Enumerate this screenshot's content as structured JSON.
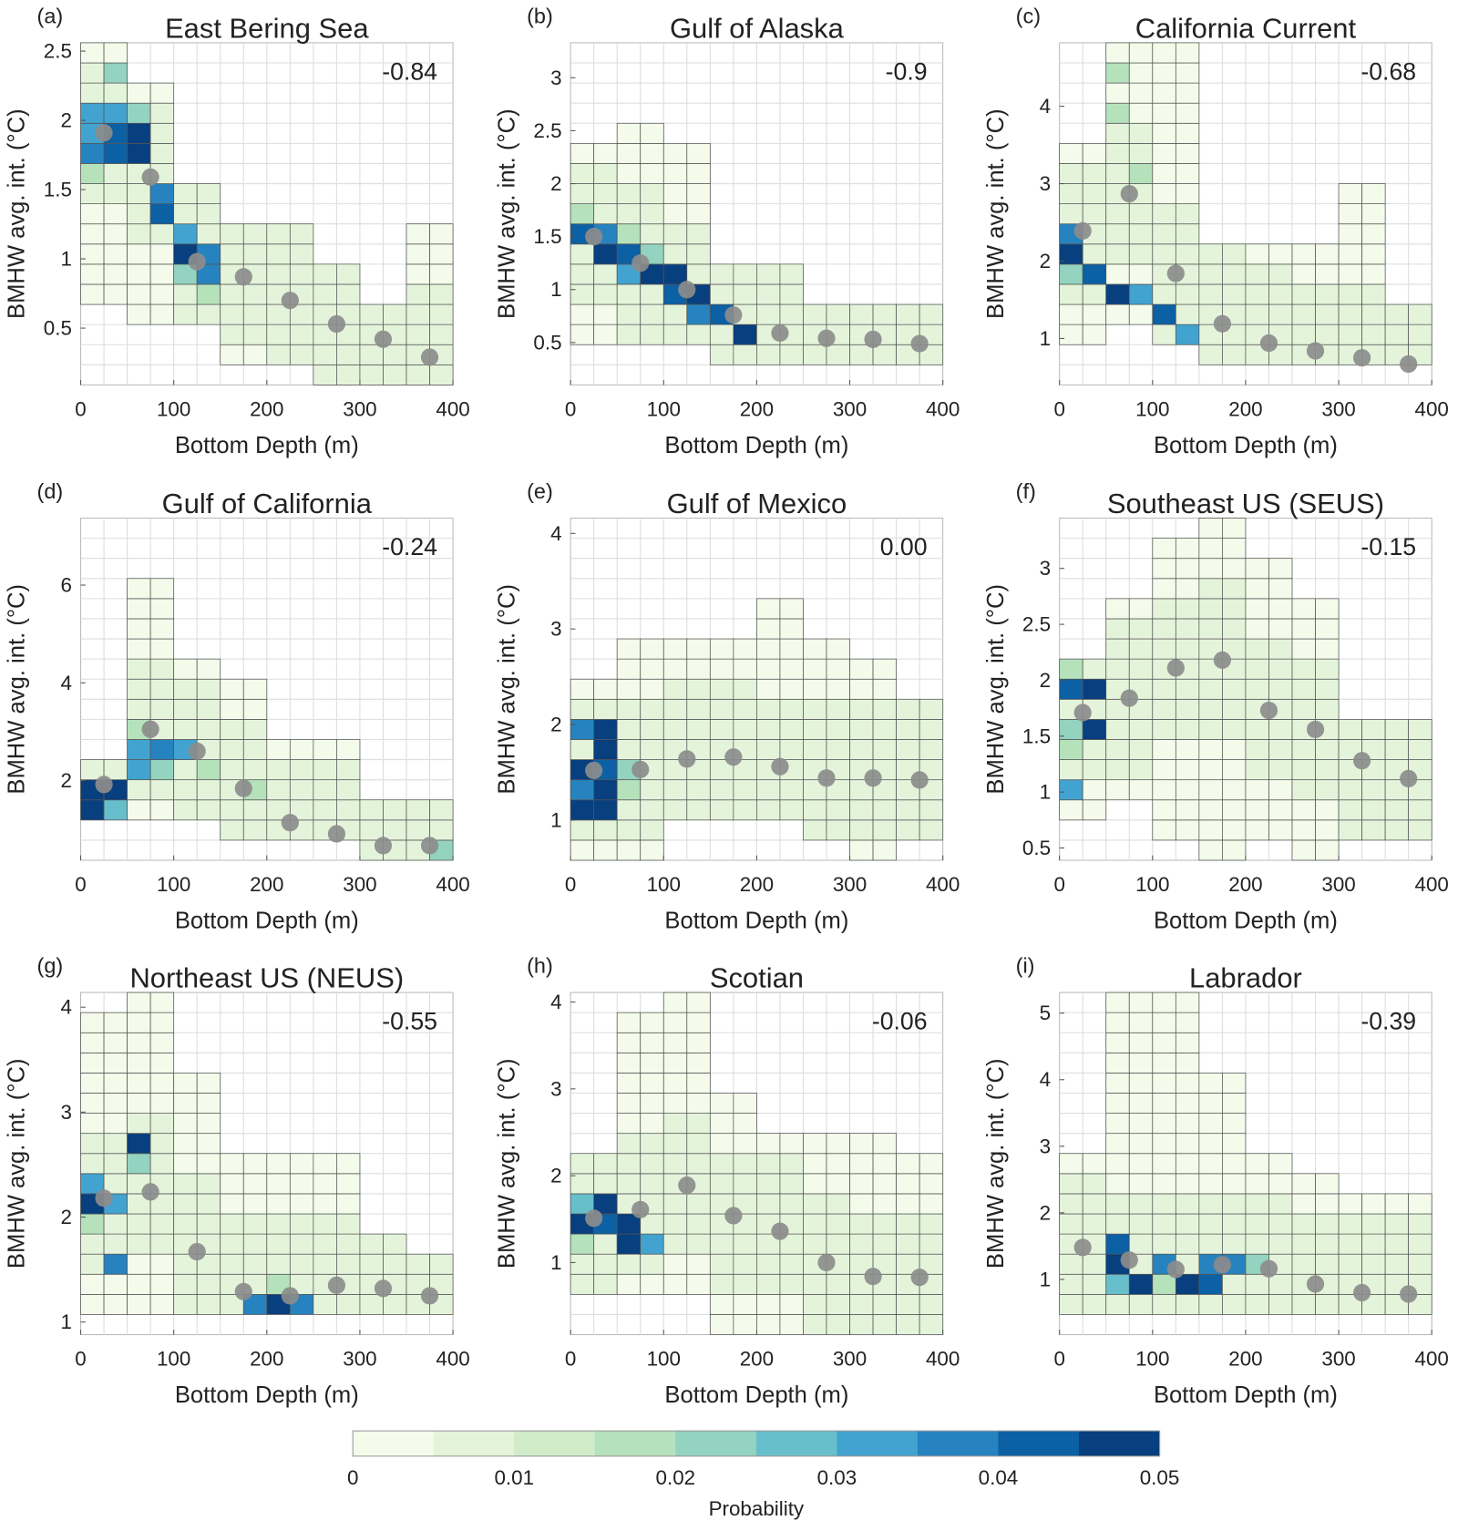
{
  "chart_data": {
    "type": "heatmap",
    "panel_count": 9,
    "xlabel": "Bottom Depth (m)",
    "ylabel": "BMHW avg. int. (°C)",
    "xlim": [
      0,
      400
    ],
    "x_ticks": [
      0,
      100,
      200,
      300,
      400
    ],
    "x_bin_width": 25,
    "mean_depths": [
      25,
      75,
      125,
      175,
      225,
      275,
      325,
      375
    ],
    "colorbar": {
      "label": "Probability",
      "range": [
        0,
        0.05
      ],
      "step": 0.005,
      "ticks": [
        "0",
        "0.01",
        "0.02",
        "0.03",
        "0.04",
        "0.05"
      ],
      "colors": [
        "#f4fbea",
        "#e4f4db",
        "#d0ecc9",
        "#b5e2bb",
        "#93d3bf",
        "#67bfcc",
        "#42a3d0",
        "#2683bf",
        "#0c60a4",
        "#083f7e"
      ]
    },
    "dot_color": "#8c8c8c",
    "panels": [
      {
        "letter": "(a)",
        "title": "East Bering Sea",
        "corr": "-0.84",
        "ylim": [
          0.09,
          2.56
        ],
        "yticks": [
          "0.5",
          "1",
          "1.5",
          "2",
          "2.5"
        ],
        "means": [
          1.91,
          1.59,
          0.98,
          0.87,
          0.7,
          0.53,
          0.42,
          0.29
        ],
        "extent": [
          [
            0.7,
            2.56
          ],
          [
            0.5,
            2.3
          ],
          [
            0.5,
            1.6
          ],
          [
            0.3,
            1.3
          ],
          [
            0.3,
            1.3
          ],
          [
            0.1,
            1.0
          ],
          [
            0.1,
            0.6
          ],
          [
            0.1,
            1.2
          ]
        ],
        "hot_cells": [
          [
            12.5,
            1.95,
            0.03
          ],
          [
            37.5,
            1.95,
            0.04
          ],
          [
            12.5,
            1.75,
            0.035
          ],
          [
            37.5,
            1.75,
            0.04
          ],
          [
            62.5,
            1.9,
            0.045
          ],
          [
            62.5,
            1.7,
            0.05
          ],
          [
            87.5,
            1.45,
            0.035
          ],
          [
            87.5,
            1.3,
            0.04
          ],
          [
            112.5,
            1.15,
            0.03
          ],
          [
            112.5,
            1.0,
            0.045
          ],
          [
            137.5,
            1.0,
            0.035
          ],
          [
            137.5,
            0.85,
            0.035
          ],
          [
            37.5,
            2.1,
            0.03
          ],
          [
            37.5,
            2.3,
            0.02
          ],
          [
            62.5,
            2.0,
            0.02
          ],
          [
            12.5,
            2.1,
            0.03
          ],
          [
            12.5,
            1.55,
            0.015
          ],
          [
            137.5,
            0.7,
            0.015
          ],
          [
            112.5,
            0.85,
            0.02
          ]
        ]
      },
      {
        "letter": "(b)",
        "title": "Gulf of Alaska",
        "corr": "-0.9",
        "ylim": [
          0.1,
          3.33
        ],
        "yticks": [
          "0.5",
          "1",
          "1.5",
          "2",
          "2.5",
          "3"
        ],
        "means": [
          1.5,
          1.25,
          1.0,
          0.76,
          0.59,
          0.54,
          0.53,
          0.49
        ],
        "extent": [
          [
            0.5,
            2.4
          ],
          [
            0.5,
            2.5
          ],
          [
            0.4,
            2.3
          ],
          [
            0.3,
            1.3
          ],
          [
            0.3,
            1.2
          ],
          [
            0.3,
            0.85
          ],
          [
            0.3,
            0.85
          ],
          [
            0.3,
            0.85
          ]
        ],
        "hot_cells": [
          [
            12.5,
            1.5,
            0.04
          ],
          [
            37.5,
            1.5,
            0.035
          ],
          [
            37.5,
            1.3,
            0.045
          ],
          [
            62.5,
            1.3,
            0.04
          ],
          [
            62.5,
            1.5,
            0.015
          ],
          [
            62.5,
            1.15,
            0.03
          ],
          [
            87.5,
            1.15,
            0.045
          ],
          [
            112.5,
            1.15,
            0.05
          ],
          [
            112.5,
            1.0,
            0.04
          ],
          [
            137.5,
            0.95,
            0.045
          ],
          [
            137.5,
            0.75,
            0.035
          ],
          [
            162.5,
            0.75,
            0.04
          ],
          [
            162.5,
            0.85,
            0.03
          ],
          [
            187.5,
            0.55,
            0.045
          ],
          [
            12.5,
            1.7,
            0.015
          ],
          [
            87.5,
            1.3,
            0.02
          ]
        ]
      },
      {
        "letter": "(c)",
        "title": "California Current",
        "corr": "-0.68",
        "ylim": [
          0.4,
          4.82
        ],
        "yticks": [
          "1",
          "2",
          "3",
          "4"
        ],
        "means": [
          2.39,
          2.87,
          1.84,
          1.19,
          0.94,
          0.84,
          0.75,
          0.67
        ],
        "extent": [
          [
            1.0,
            3.5
          ],
          [
            1.2,
            4.8
          ],
          [
            0.8,
            4.8
          ],
          [
            0.6,
            2.3
          ],
          [
            0.6,
            2.3
          ],
          [
            0.6,
            2.3
          ],
          [
            0.6,
            3.0
          ],
          [
            0.6,
            1.5
          ]
        ],
        "hot_cells": [
          [
            12.5,
            2.3,
            0.035
          ],
          [
            12.5,
            2.05,
            0.05
          ],
          [
            37.5,
            1.85,
            0.04
          ],
          [
            62.5,
            1.65,
            0.045
          ],
          [
            87.5,
            1.65,
            0.03
          ],
          [
            112.5,
            1.3,
            0.04
          ],
          [
            137.5,
            1.05,
            0.03
          ],
          [
            62.5,
            4.3,
            0.015
          ],
          [
            62.5,
            3.8,
            0.015
          ],
          [
            87.5,
            3.0,
            0.015
          ],
          [
            12.5,
            1.85,
            0.02
          ]
        ]
      },
      {
        "letter": "(d)",
        "title": "Gulf of California",
        "corr": "-0.24",
        "ylim": [
          0.37,
          7.37
        ],
        "yticks": [
          "2",
          "4",
          "6"
        ],
        "means": [
          1.92,
          3.05,
          2.6,
          1.84,
          1.14,
          0.91,
          0.67,
          0.67
        ],
        "extent": [
          [
            1.0,
            2.4
          ],
          [
            1.2,
            6.1
          ],
          [
            1.0,
            4.4
          ],
          [
            0.7,
            4.0
          ],
          [
            0.6,
            3.0
          ],
          [
            0.6,
            2.8
          ],
          [
            0.4,
            1.6
          ],
          [
            0.4,
            1.6
          ]
        ],
        "hot_cells": [
          [
            12.5,
            1.85,
            0.045
          ],
          [
            12.5,
            1.4,
            0.05
          ],
          [
            37.5,
            1.85,
            0.05
          ],
          [
            37.5,
            1.4,
            0.025
          ],
          [
            62.5,
            2.3,
            0.03
          ],
          [
            62.5,
            2.7,
            0.03
          ],
          [
            87.5,
            2.7,
            0.035
          ],
          [
            112.5,
            2.7,
            0.03
          ],
          [
            87.5,
            2.3,
            0.02
          ],
          [
            62.5,
            3.2,
            0.015
          ],
          [
            137.5,
            2.2,
            0.015
          ],
          [
            187.5,
            1.8,
            0.015
          ],
          [
            387.5,
            0.7,
            0.02
          ]
        ]
      },
      {
        "letter": "(e)",
        "title": "Gulf of Mexico",
        "corr": "0.00",
        "ylim": [
          0.58,
          4.16
        ],
        "yticks": [
          "1",
          "2",
          "3",
          "4"
        ],
        "means": [
          1.52,
          1.53,
          1.64,
          1.66,
          1.56,
          1.44,
          1.44,
          1.42
        ],
        "extent": [
          [
            0.6,
            2.5
          ],
          [
            0.6,
            2.9
          ],
          [
            0.9,
            2.9
          ],
          [
            0.9,
            2.9
          ],
          [
            0.9,
            3.3
          ],
          [
            0.8,
            2.9
          ],
          [
            0.6,
            2.6
          ],
          [
            0.8,
            2.3
          ]
        ],
        "hot_cells": [
          [
            12.5,
            1.9,
            0.035
          ],
          [
            12.5,
            1.5,
            0.045
          ],
          [
            12.5,
            1.3,
            0.035
          ],
          [
            12.5,
            1.1,
            0.05
          ],
          [
            37.5,
            2.0,
            0.05
          ],
          [
            37.5,
            1.7,
            0.045
          ],
          [
            37.5,
            1.5,
            0.04
          ],
          [
            37.5,
            1.3,
            0.045
          ],
          [
            37.5,
            1.1,
            0.05
          ],
          [
            62.5,
            1.5,
            0.02
          ],
          [
            62.5,
            1.3,
            0.015
          ]
        ]
      },
      {
        "letter": "(f)",
        "title": "Southeast US (SEUS)",
        "corr": "-0.15",
        "ylim": [
          0.39,
          3.45
        ],
        "yticks": [
          "0.5",
          "1",
          "1.5",
          "2",
          "2.5",
          "3"
        ],
        "means": [
          1.71,
          1.84,
          2.11,
          2.18,
          1.73,
          1.56,
          1.28,
          1.12
        ],
        "extent": [
          [
            0.8,
            2.2
          ],
          [
            0.9,
            2.8
          ],
          [
            0.5,
            3.3
          ],
          [
            0.4,
            3.4
          ],
          [
            0.5,
            3.0
          ],
          [
            0.4,
            2.7
          ],
          [
            0.5,
            1.7
          ],
          [
            0.5,
            1.7
          ]
        ],
        "hot_cells": [
          [
            12.5,
            1.85,
            0.04
          ],
          [
            37.5,
            1.85,
            0.05
          ],
          [
            37.5,
            1.6,
            0.05
          ],
          [
            12.5,
            1.6,
            0.02
          ],
          [
            12.5,
            1.35,
            0.015
          ],
          [
            12.5,
            1.1,
            0.03
          ],
          [
            12.5,
            2.1,
            0.015
          ]
        ]
      },
      {
        "letter": "(g)",
        "title": "Northeast US (NEUS)",
        "corr": "-0.55",
        "ylim": [
          0.88,
          4.14
        ],
        "yticks": [
          "1",
          "2",
          "3",
          "4"
        ],
        "means": [
          2.18,
          2.24,
          1.67,
          1.29,
          1.25,
          1.35,
          1.32,
          1.25
        ],
        "extent": [
          [
            1.0,
            4.0
          ],
          [
            1.1,
            4.1
          ],
          [
            1.0,
            3.3
          ],
          [
            1.0,
            2.6
          ],
          [
            1.0,
            2.6
          ],
          [
            1.1,
            2.6
          ],
          [
            1.1,
            1.9
          ],
          [
            1.1,
            1.7
          ]
        ],
        "hot_cells": [
          [
            12.5,
            2.15,
            0.045
          ],
          [
            12.5,
            2.3,
            0.03
          ],
          [
            37.5,
            2.2,
            0.03
          ],
          [
            62.5,
            2.65,
            0.045
          ],
          [
            62.5,
            2.5,
            0.02
          ],
          [
            37.5,
            1.55,
            0.035
          ],
          [
            12.5,
            1.95,
            0.015
          ],
          [
            187.5,
            1.2,
            0.035
          ],
          [
            187.5,
            1.15,
            0.03
          ],
          [
            212.5,
            1.15,
            0.05
          ],
          [
            237.5,
            1.15,
            0.035
          ],
          [
            212.5,
            1.3,
            0.015
          ]
        ]
      },
      {
        "letter": "(h)",
        "title": "Scotian",
        "corr": "-0.06",
        "ylim": [
          0.17,
          4.11
        ],
        "yticks": [
          "1",
          "2",
          "3",
          "4"
        ],
        "means": [
          1.51,
          1.61,
          1.89,
          1.54,
          1.36,
          1.0,
          0.84,
          0.83
        ],
        "extent": [
          [
            0.6,
            2.3
          ],
          [
            0.6,
            3.9
          ],
          [
            0.6,
            4.1
          ],
          [
            0.2,
            3.0
          ],
          [
            0.2,
            2.6
          ],
          [
            0.2,
            2.6
          ],
          [
            0.2,
            2.5
          ],
          [
            0.2,
            2.3
          ]
        ],
        "hot_cells": [
          [
            12.5,
            1.55,
            0.05
          ],
          [
            37.5,
            1.7,
            0.05
          ],
          [
            12.5,
            1.7,
            0.025
          ],
          [
            37.5,
            1.4,
            0.035
          ],
          [
            62.5,
            1.4,
            0.05
          ],
          [
            62.5,
            1.15,
            0.05
          ],
          [
            87.5,
            1.15,
            0.03
          ],
          [
            12.5,
            1.3,
            0.015
          ],
          [
            37.5,
            1.55,
            0.04
          ]
        ]
      },
      {
        "letter": "(i)",
        "title": "Labrador",
        "corr": "-0.39",
        "ylim": [
          0.17,
          5.31
        ],
        "yticks": [
          "1",
          "2",
          "3",
          "4",
          "5"
        ],
        "means": [
          1.48,
          1.29,
          1.15,
          1.22,
          1.16,
          0.93,
          0.8,
          0.78
        ],
        "extent": [
          [
            0.6,
            2.9
          ],
          [
            0.6,
            5.3
          ],
          [
            0.6,
            5.3
          ],
          [
            0.6,
            4.0
          ],
          [
            0.6,
            3.0
          ],
          [
            0.6,
            2.7
          ],
          [
            0.6,
            2.2
          ],
          [
            0.6,
            2.2
          ]
        ],
        "hot_cells": [
          [
            62.5,
            1.45,
            0.04
          ],
          [
            62.5,
            1.15,
            0.045
          ],
          [
            87.5,
            0.95,
            0.05
          ],
          [
            112.5,
            1.15,
            0.035
          ],
          [
            137.5,
            0.95,
            0.045
          ],
          [
            162.5,
            0.95,
            0.04
          ],
          [
            162.5,
            1.15,
            0.035
          ],
          [
            187.5,
            1.15,
            0.035
          ],
          [
            62.5,
            0.95,
            0.025
          ],
          [
            112.5,
            0.95,
            0.015
          ],
          [
            212.5,
            1.1,
            0.02
          ]
        ]
      }
    ]
  }
}
